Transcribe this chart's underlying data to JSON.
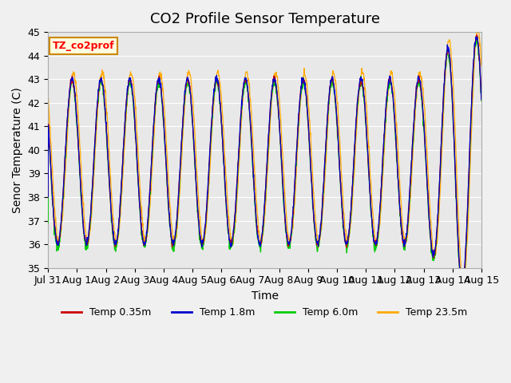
{
  "title": "CO2 Profile Sensor Temperature",
  "ylabel": "Senor Temperature (C)",
  "xlabel": "Time",
  "ylim": [
    35.0,
    45.0
  ],
  "yticks": [
    35.0,
    36.0,
    37.0,
    38.0,
    39.0,
    40.0,
    41.0,
    42.0,
    43.0,
    44.0,
    45.0
  ],
  "xtick_labels": [
    "Jul 31",
    "Aug 1",
    "Aug 2",
    "Aug 3",
    "Aug 4",
    "Aug 5",
    "Aug 6",
    "Aug 7",
    "Aug 8",
    "Aug 9",
    "Aug 10",
    "Aug 11",
    "Aug 12",
    "Aug 13",
    "Aug 14",
    "Aug 15"
  ],
  "xtick_positions": [
    0,
    1,
    2,
    3,
    4,
    5,
    6,
    7,
    8,
    9,
    10,
    11,
    12,
    13,
    14,
    15
  ],
  "series_colors": {
    "Temp 0.35m": "#cc0000",
    "Temp 1.8m": "#0000cc",
    "Temp 6.0m": "#00cc00",
    "Temp 23.5m": "#ffaa00"
  },
  "legend_label": "TZ_co2prof",
  "fig_bg_color": "#f0f0f0",
  "ax_bg_color": "#e8e8e8",
  "grid_color": "#ffffff",
  "title_fontsize": 13,
  "axis_fontsize": 10,
  "tick_fontsize": 9
}
